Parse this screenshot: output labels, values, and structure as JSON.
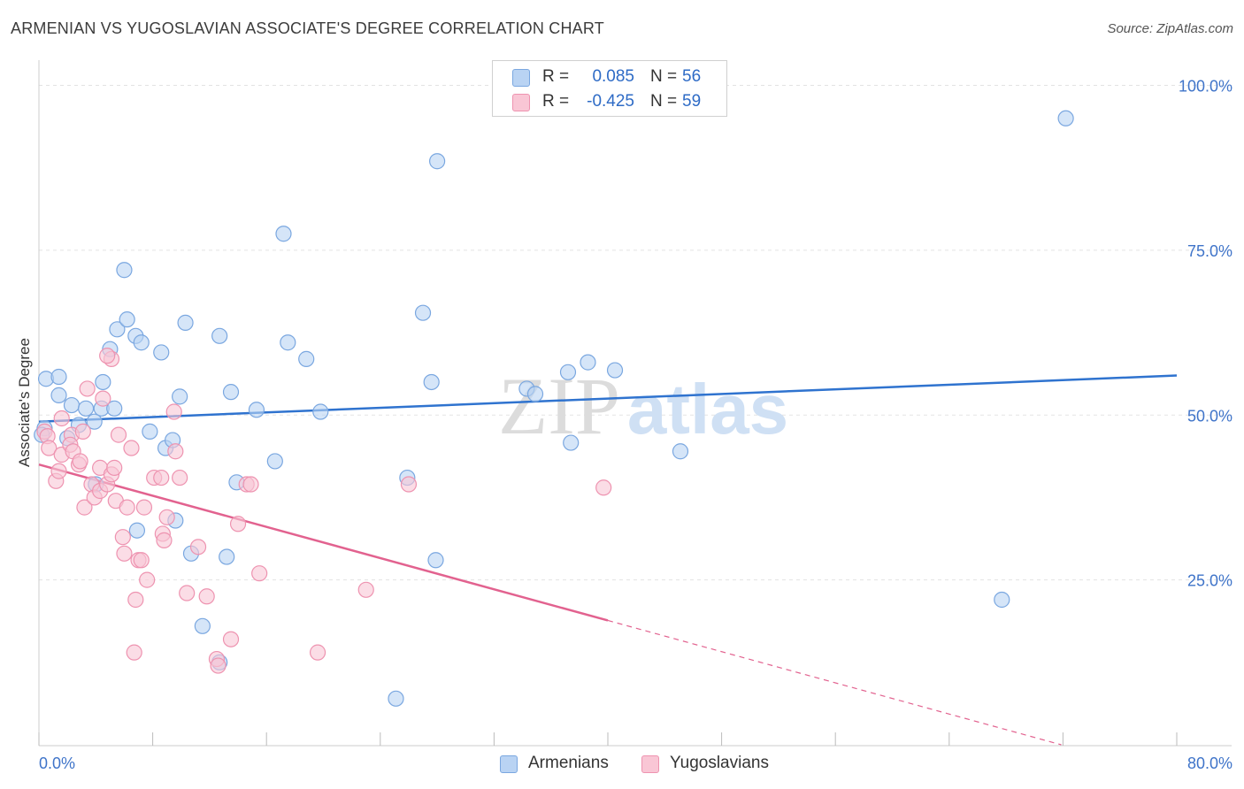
{
  "header": {
    "title": "ARMENIAN VS YUGOSLAVIAN ASSOCIATE'S DEGREE CORRELATION CHART",
    "source": "Source: ZipAtlas.com"
  },
  "watermark": {
    "zip": "ZIP",
    "atlas": "atlas"
  },
  "legend_top": {
    "rows": [
      {
        "r_label": "R =",
        "r_value": "0.085",
        "n_label": "N =",
        "n_value": "56"
      },
      {
        "r_label": "R =",
        "r_value": "-0.425",
        "n_label": "N =",
        "n_value": "59"
      }
    ]
  },
  "legend_bottom": {
    "items": [
      "Armenians",
      "Yugoslavians"
    ]
  },
  "colors": {
    "armenian_fill": "#b9d3f3",
    "armenian_stroke": "#7aa7e0",
    "armenian_line": "#2f73cf",
    "yugoslavian_fill": "#f9c6d5",
    "yugoslavian_stroke": "#ee93b0",
    "yugoslavian_line": "#e2628f",
    "tick_text": "#3f74c9",
    "grid": "#e3e3e3"
  },
  "chart_data": {
    "type": "scatter",
    "title": "ARMENIAN VS YUGOSLAVIAN ASSOCIATE'S DEGREE CORRELATION CHART",
    "xlabel": "",
    "ylabel": "Associate's Degree",
    "xlim": [
      0,
      80
    ],
    "ylim": [
      0,
      100
    ],
    "x_tick_labels": [
      "0.0%",
      "80.0%"
    ],
    "y_ticks": [
      25,
      50,
      75,
      100
    ],
    "y_tick_labels": [
      "25.0%",
      "50.0%",
      "75.0%",
      "100.0%"
    ],
    "grid": true,
    "legend_position": "top-center",
    "series": [
      {
        "name": "Armenians",
        "r": 0.085,
        "n": 56,
        "trend": {
          "x0": 0,
          "y0": 49.0,
          "x1": 80,
          "y1": 56.0,
          "dashed_from": null
        },
        "points": [
          [
            0.5,
            55.5
          ],
          [
            1.4,
            55.8
          ],
          [
            1.4,
            53.0
          ],
          [
            0.4,
            48.0
          ],
          [
            0.2,
            47.0
          ],
          [
            2.3,
            51.5
          ],
          [
            3.3,
            51.0
          ],
          [
            4.5,
            55.0
          ],
          [
            4.4,
            51.0
          ],
          [
            5.3,
            51.0
          ],
          [
            3.9,
            49.0
          ],
          [
            2.0,
            46.5
          ],
          [
            2.8,
            48.5
          ],
          [
            5.0,
            60.0
          ],
          [
            5.5,
            63.0
          ],
          [
            6.2,
            64.5
          ],
          [
            6.0,
            72.0
          ],
          [
            6.8,
            62.0
          ],
          [
            7.2,
            61.0
          ],
          [
            8.6,
            59.5
          ],
          [
            10.3,
            64.0
          ],
          [
            12.7,
            62.0
          ],
          [
            13.5,
            53.5
          ],
          [
            9.9,
            52.8
          ],
          [
            7.8,
            47.5
          ],
          [
            8.9,
            45.0
          ],
          [
            9.4,
            46.2
          ],
          [
            15.3,
            50.8
          ],
          [
            17.5,
            61.0
          ],
          [
            17.2,
            77.5
          ],
          [
            18.8,
            58.5
          ],
          [
            19.8,
            50.5
          ],
          [
            16.6,
            43.0
          ],
          [
            13.9,
            39.8
          ],
          [
            10.7,
            29.0
          ],
          [
            13.2,
            28.5
          ],
          [
            6.9,
            32.5
          ],
          [
            9.6,
            34.0
          ],
          [
            11.5,
            18.0
          ],
          [
            12.7,
            12.5
          ],
          [
            28.0,
            88.5
          ],
          [
            27.6,
            55.0
          ],
          [
            27.0,
            65.5
          ],
          [
            34.3,
            54.0
          ],
          [
            34.9,
            53.2
          ],
          [
            37.2,
            56.5
          ],
          [
            37.4,
            45.8
          ],
          [
            38.6,
            58.0
          ],
          [
            40.5,
            56.8
          ],
          [
            25.9,
            40.5
          ],
          [
            27.9,
            28.0
          ],
          [
            25.1,
            7.0
          ],
          [
            45.1,
            44.5
          ],
          [
            72.2,
            95.0
          ],
          [
            67.7,
            22.0
          ],
          [
            4.0,
            39.5
          ]
        ]
      },
      {
        "name": "Yugoslavians",
        "r": -0.425,
        "n": 59,
        "trend": {
          "x0": 0,
          "y0": 42.5,
          "x1": 80,
          "y1": -4.8,
          "dashed_from": 40
        },
        "points": [
          [
            0.4,
            47.5
          ],
          [
            0.6,
            46.8
          ],
          [
            0.7,
            45.0
          ],
          [
            1.2,
            40.0
          ],
          [
            1.6,
            44.0
          ],
          [
            1.4,
            41.5
          ],
          [
            2.3,
            47.0
          ],
          [
            2.2,
            45.5
          ],
          [
            2.4,
            44.5
          ],
          [
            2.8,
            42.5
          ],
          [
            2.9,
            43.0
          ],
          [
            3.1,
            47.5
          ],
          [
            3.2,
            36.0
          ],
          [
            3.4,
            54.0
          ],
          [
            3.7,
            39.5
          ],
          [
            3.9,
            37.5
          ],
          [
            4.3,
            38.5
          ],
          [
            4.3,
            42.0
          ],
          [
            4.5,
            52.5
          ],
          [
            4.8,
            39.5
          ],
          [
            5.1,
            41.0
          ],
          [
            5.3,
            42.0
          ],
          [
            5.4,
            37.0
          ],
          [
            5.6,
            47.0
          ],
          [
            5.1,
            58.5
          ],
          [
            4.8,
            59.0
          ],
          [
            6.2,
            36.0
          ],
          [
            5.9,
            31.5
          ],
          [
            6.0,
            29.0
          ],
          [
            6.5,
            45.0
          ],
          [
            7.0,
            28.0
          ],
          [
            7.2,
            28.0
          ],
          [
            7.4,
            36.0
          ],
          [
            7.6,
            25.0
          ],
          [
            8.1,
            40.5
          ],
          [
            8.6,
            40.5
          ],
          [
            8.7,
            32.0
          ],
          [
            8.8,
            31.0
          ],
          [
            9.0,
            34.5
          ],
          [
            9.5,
            50.5
          ],
          [
            9.6,
            44.5
          ],
          [
            9.9,
            40.5
          ],
          [
            10.4,
            23.0
          ],
          [
            11.2,
            30.0
          ],
          [
            11.8,
            22.5
          ],
          [
            12.5,
            13.0
          ],
          [
            12.6,
            12.0
          ],
          [
            13.5,
            16.0
          ],
          [
            14.0,
            33.5
          ],
          [
            14.6,
            39.5
          ],
          [
            14.9,
            39.5
          ],
          [
            15.5,
            26.0
          ],
          [
            19.6,
            14.0
          ],
          [
            23.0,
            23.5
          ],
          [
            26.0,
            39.5
          ],
          [
            39.7,
            39.0
          ],
          [
            6.7,
            14.0
          ],
          [
            6.8,
            22.0
          ],
          [
            1.6,
            49.5
          ]
        ]
      }
    ]
  }
}
